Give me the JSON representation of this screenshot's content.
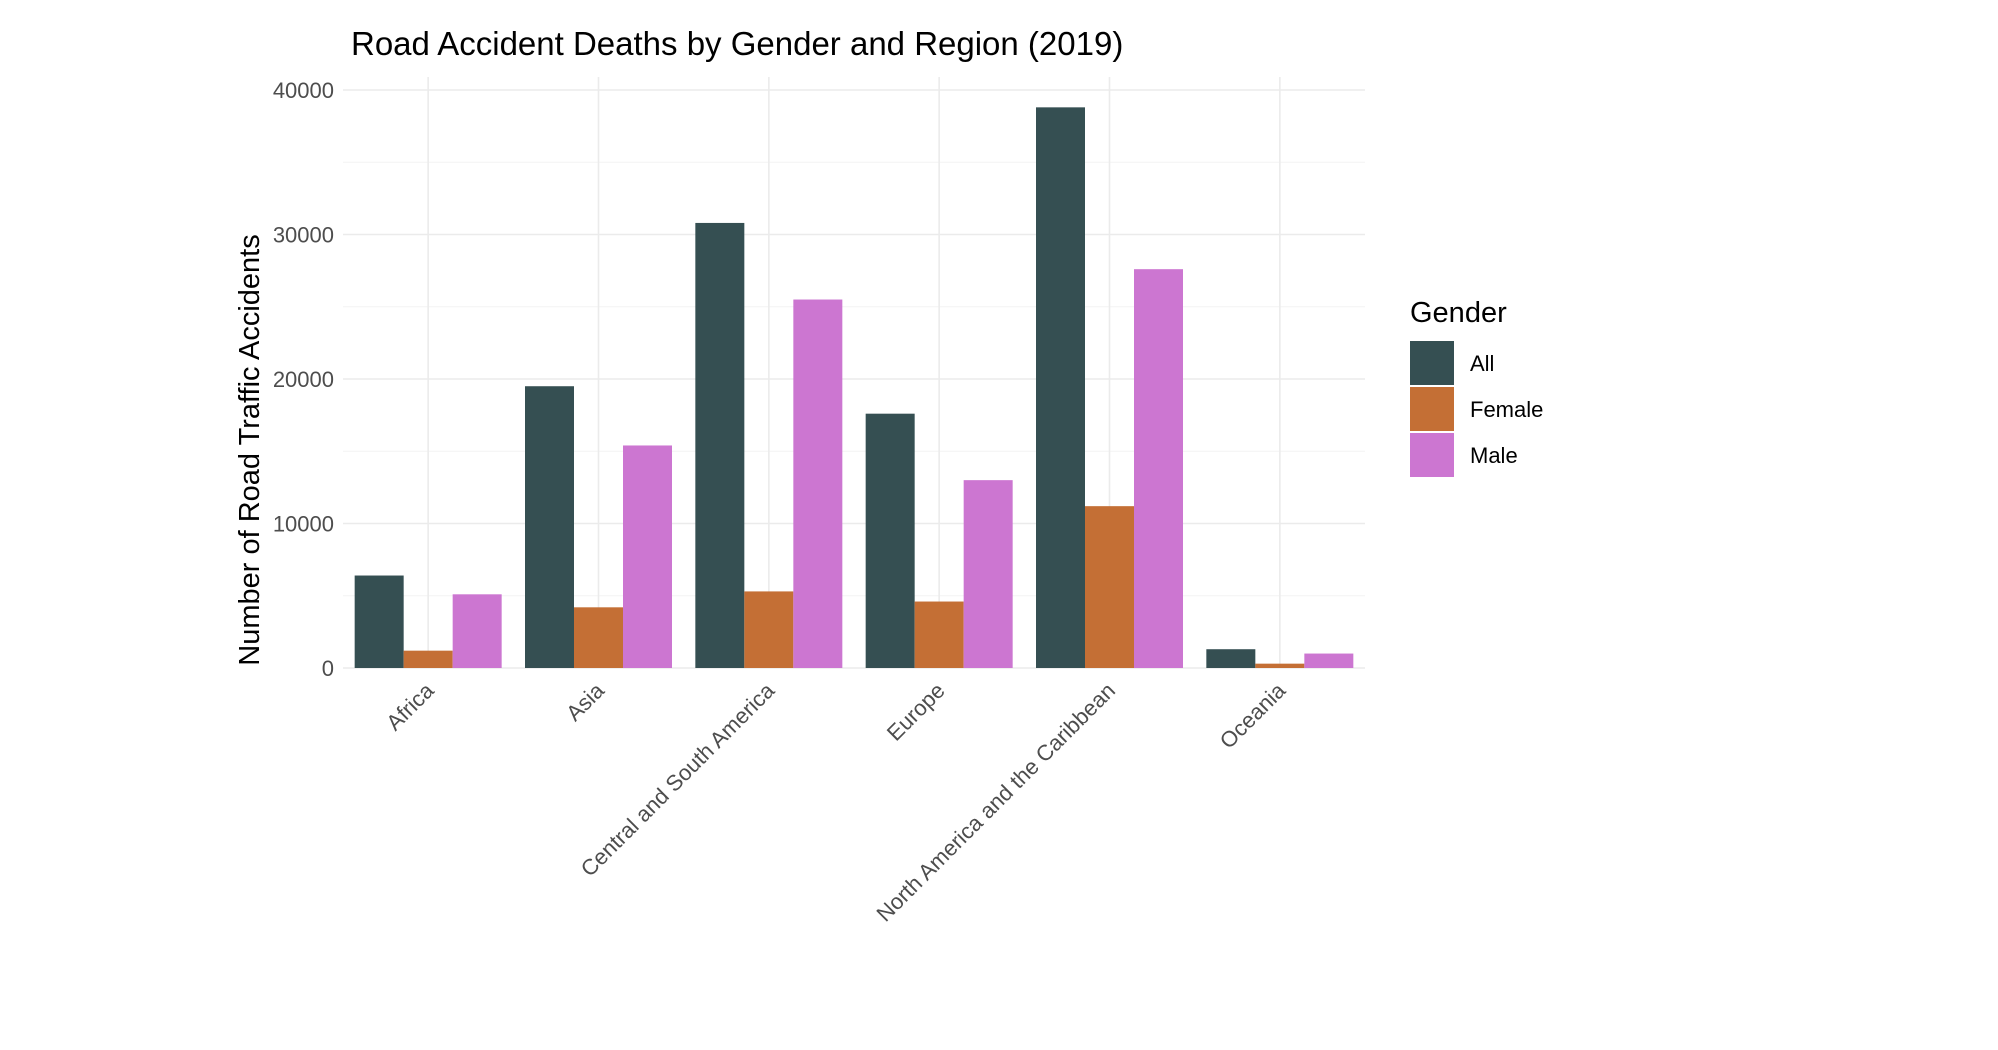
{
  "chart_data": {
    "type": "bar",
    "title": "Road Accident Deaths by Gender and Region (2019)",
    "xlabel": "",
    "ylabel": "Number of Road Traffic Accidents",
    "categories": [
      "Africa",
      "Asia",
      "Central and South America",
      "Europe",
      "North America and the Caribbean",
      "Oceania"
    ],
    "series": [
      {
        "name": "All",
        "color": "#354f52",
        "values": [
          6400,
          19500,
          30800,
          17600,
          38800,
          1300
        ]
      },
      {
        "name": "Female",
        "color": "#c46f35",
        "values": [
          1200,
          4200,
          5300,
          4600,
          11200,
          300
        ]
      },
      {
        "name": "Male",
        "color": "#cc76d1",
        "values": [
          5100,
          15400,
          25500,
          13000,
          27600,
          1000
        ]
      }
    ],
    "ylim": [
      0,
      40000
    ],
    "yticks": [
      "0",
      "10000",
      "20000",
      "30000",
      "40000"
    ],
    "legend_title": "Gender",
    "legend_position": "right",
    "grid": true
  }
}
